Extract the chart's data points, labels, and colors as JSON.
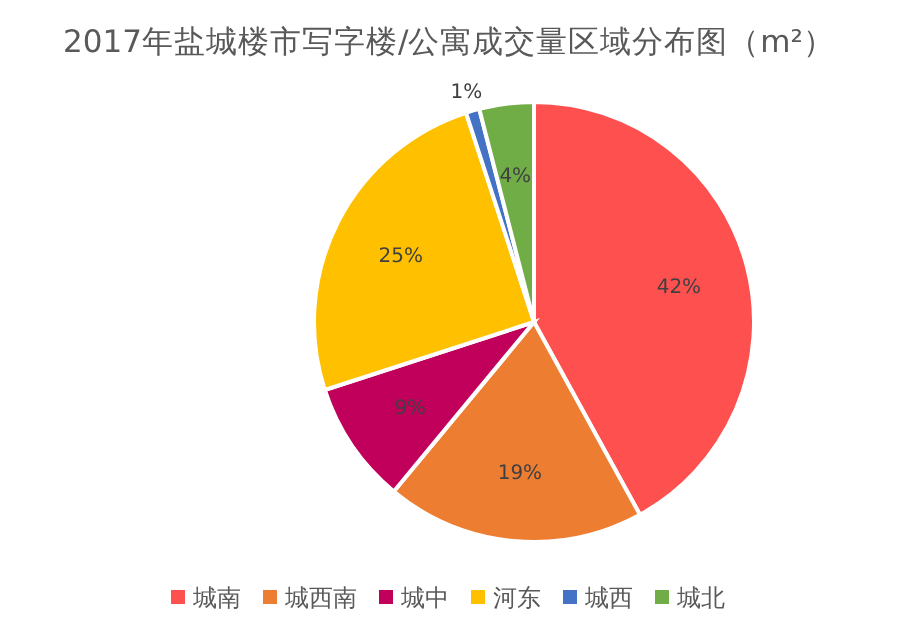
{
  "chart_data": {
    "type": "pie",
    "title": "2017年盐城楼市写字楼/公寓成交量区域分布图（m²）",
    "categories": [
      "城南",
      "城西南",
      "城中",
      "河东",
      "城西",
      "城北"
    ],
    "values": [
      42,
      19,
      9,
      25,
      1,
      4
    ],
    "value_labels": [
      "42%",
      "19%",
      "9%",
      "25%",
      "1%",
      "4%"
    ],
    "colors": [
      "#ff5050",
      "#ed7d31",
      "#c0005a",
      "#ffc000",
      "#4472c4",
      "#70ad47"
    ],
    "legend": "bottom"
  }
}
